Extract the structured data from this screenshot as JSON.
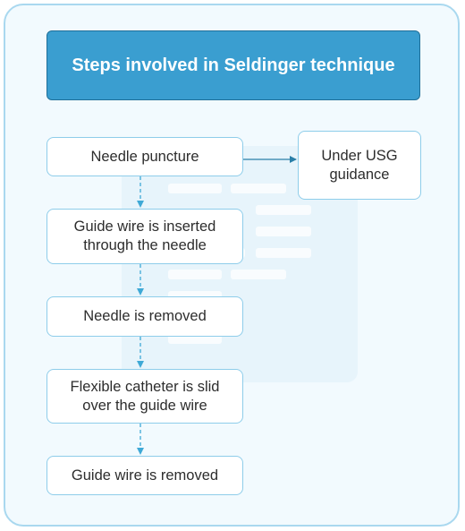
{
  "title": "Steps involved in Seldinger technique",
  "steps": [
    "Needle puncture",
    "Guide wire is inserted through the needle",
    "Needle is removed",
    "Flexible catheter is slid over the guide wire",
    "Guide wire is removed"
  ],
  "side_note": "Under USG guidance",
  "colors": {
    "title_fill": "#3a9ed0",
    "box_border": "#8ecdea",
    "arrow": "#3fa9d6",
    "side_arrow": "#2a7fa8",
    "card_border": "#a9d8ef"
  }
}
